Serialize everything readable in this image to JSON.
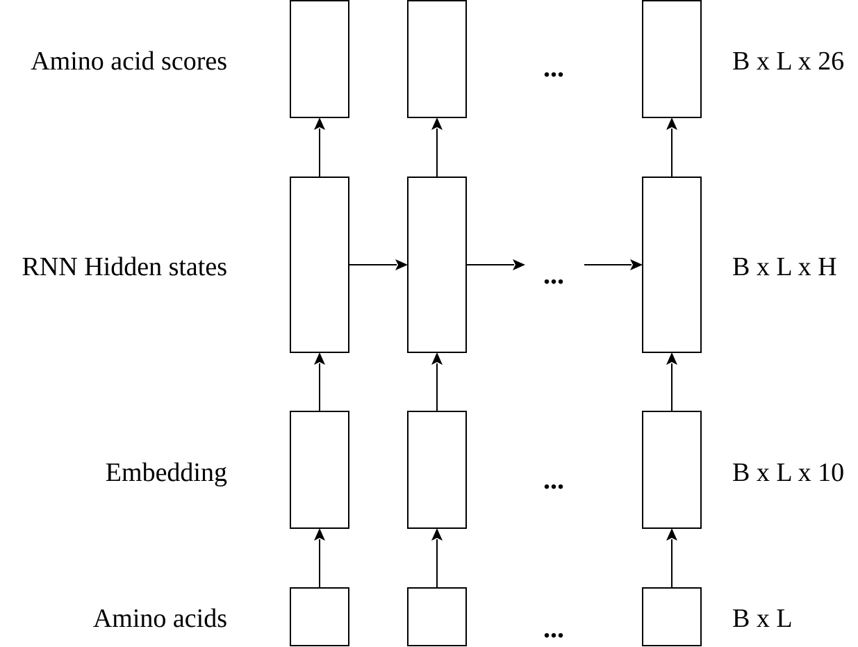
{
  "layers": [
    {
      "id": "scores",
      "label": "Amino acid scores",
      "shape": "B x L x 26"
    },
    {
      "id": "hidden",
      "label": "RNN Hidden states",
      "shape": "B x L x H"
    },
    {
      "id": "embedding",
      "label": "Embedding",
      "shape": "B x L x 10"
    },
    {
      "id": "input",
      "label": "Amino acids",
      "shape": "B x L"
    }
  ],
  "ellipsis": "..."
}
